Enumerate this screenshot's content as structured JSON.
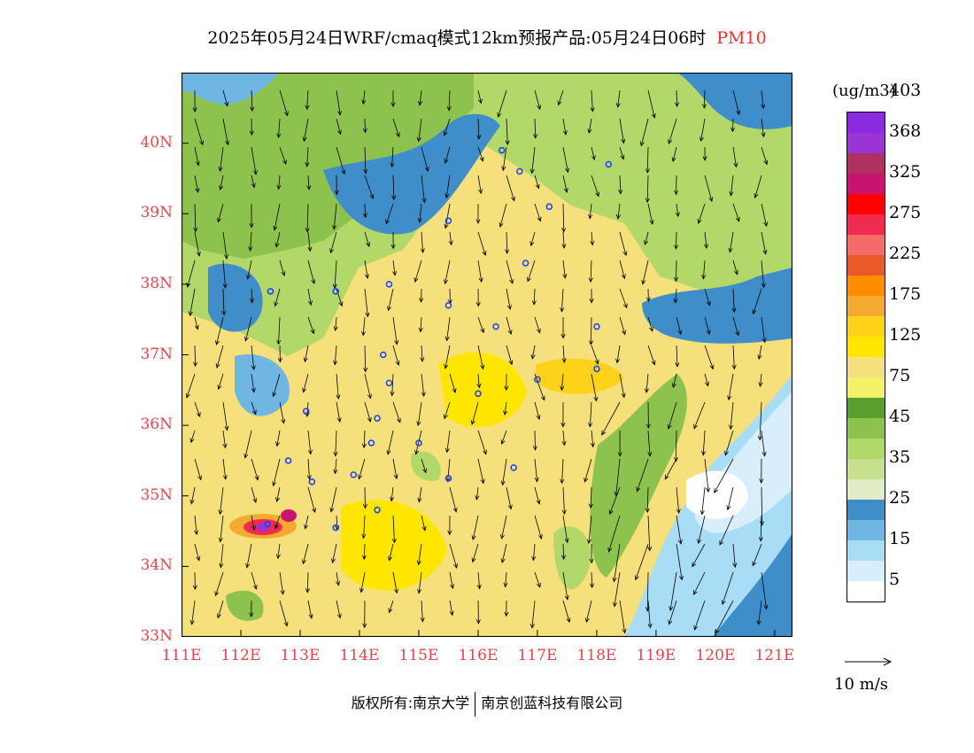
{
  "title": {
    "main": "2025年05月24日WRF/cmaq模式12km预报产品:05月24日06时",
    "product": "PM10"
  },
  "legend": {
    "unit": "(ug/m3)",
    "bins": [
      {
        "color": "#ffffff"
      },
      {
        "color": "#d8eefa"
      },
      {
        "color": "#a9dcf5"
      },
      {
        "color": "#6fb6e2"
      },
      {
        "color": "#3f8ec9"
      },
      {
        "color": "#e0ecc6"
      },
      {
        "color": "#c6e08e"
      },
      {
        "color": "#b2d86a"
      },
      {
        "color": "#8ec24f"
      },
      {
        "color": "#5a9e2e"
      },
      {
        "color": "#f2f268"
      },
      {
        "color": "#f5e07c"
      },
      {
        "color": "#ffe600"
      },
      {
        "color": "#ffd21a"
      },
      {
        "color": "#f4aa2e"
      },
      {
        "color": "#ff8c00"
      },
      {
        "color": "#ec5a2a"
      },
      {
        "color": "#f76a6a"
      },
      {
        "color": "#f02b50"
      },
      {
        "color": "#ff0000"
      },
      {
        "color": "#c8146e"
      },
      {
        "color": "#b03060"
      },
      {
        "color": "#9a34d6"
      },
      {
        "color": "#8a2be2"
      }
    ],
    "labels": [
      "5",
      "15",
      "25",
      "35",
      "45",
      "75",
      "125",
      "175",
      "225",
      "275",
      "325",
      "368",
      "403"
    ]
  },
  "map": {
    "lon_labels": [
      "111E",
      "112E",
      "113E",
      "114E",
      "115E",
      "116E",
      "117E",
      "118E",
      "119E",
      "120E",
      "121E"
    ],
    "lat_labels": [
      "33N",
      "34N",
      "35N",
      "36N",
      "37N",
      "38N",
      "39N",
      "40N"
    ],
    "lon_range": [
      111,
      121.3
    ],
    "lat_range": [
      33,
      41
    ],
    "field": "PM10",
    "wind_barbs": "arrows"
  },
  "reference_vector": {
    "label": "10 m/s"
  },
  "footer": {
    "left": "版权所有:南京大学",
    "right": "南京创蓝科技有限公司"
  }
}
